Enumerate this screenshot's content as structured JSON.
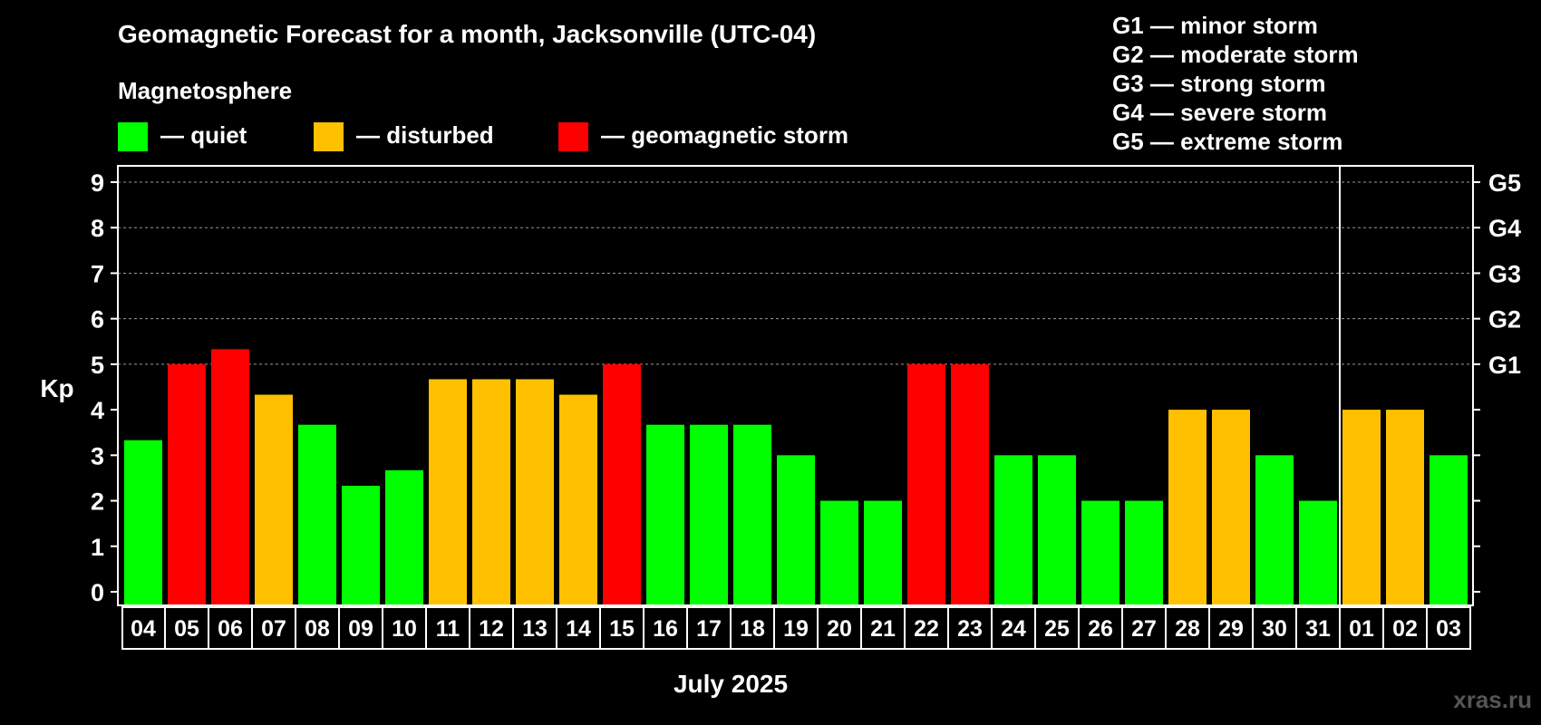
{
  "chart_data": {
    "type": "bar",
    "title": "Geomagnetic Forecast for a month, Jacksonville (UTC-04)",
    "subtitle": "Magnetosphere",
    "xlabel": "July 2025",
    "ylabel": "Kp",
    "ylim": [
      0,
      9
    ],
    "yticks": [
      "0",
      "1",
      "2",
      "3",
      "4",
      "5",
      "6",
      "7",
      "8",
      "9"
    ],
    "grid": true,
    "legend": [
      {
        "label": "— quiet",
        "color": "#00ff00"
      },
      {
        "label": "— disturbed",
        "color": "#ffc000"
      },
      {
        "label": "— geomagnetic storm",
        "color": "#ff0000"
      }
    ],
    "storm_levels": [
      {
        "label": "G1",
        "kp": 5
      },
      {
        "label": "G2",
        "kp": 6
      },
      {
        "label": "G3",
        "kp": 7
      },
      {
        "label": "G4",
        "kp": 8
      },
      {
        "label": "G5",
        "kp": 9
      }
    ],
    "storm_descriptions": [
      "G1 — minor storm",
      "G2 — moderate storm",
      "G3 — strong storm",
      "G4 — severe storm",
      "G5 — extreme storm"
    ],
    "categories": [
      "04",
      "05",
      "06",
      "07",
      "08",
      "09",
      "10",
      "11",
      "12",
      "13",
      "14",
      "15",
      "16",
      "17",
      "18",
      "19",
      "20",
      "21",
      "22",
      "23",
      "24",
      "25",
      "26",
      "27",
      "28",
      "29",
      "30",
      "31",
      "01",
      "02",
      "03"
    ],
    "values": [
      3.33,
      5,
      5.33,
      4.33,
      3.67,
      2.33,
      2.67,
      4.67,
      4.67,
      4.67,
      4.33,
      5,
      3.67,
      3.67,
      3.67,
      3,
      2,
      2,
      5,
      5,
      3,
      3,
      2,
      2,
      4,
      4,
      3,
      2,
      4,
      4,
      3
    ],
    "status": [
      "quiet",
      "storm",
      "storm",
      "disturbed",
      "quiet",
      "quiet",
      "quiet",
      "disturbed",
      "disturbed",
      "disturbed",
      "disturbed",
      "storm",
      "quiet",
      "quiet",
      "quiet",
      "quiet",
      "quiet",
      "quiet",
      "storm",
      "storm",
      "quiet",
      "quiet",
      "quiet",
      "quiet",
      "disturbed",
      "disturbed",
      "quiet",
      "quiet",
      "disturbed",
      "disturbed",
      "quiet"
    ],
    "colors": {
      "quiet": "#00ff00",
      "disturbed": "#ffc000",
      "storm": "#ff0000"
    },
    "month_divider_after": "31"
  },
  "watermark": "xras.ru"
}
